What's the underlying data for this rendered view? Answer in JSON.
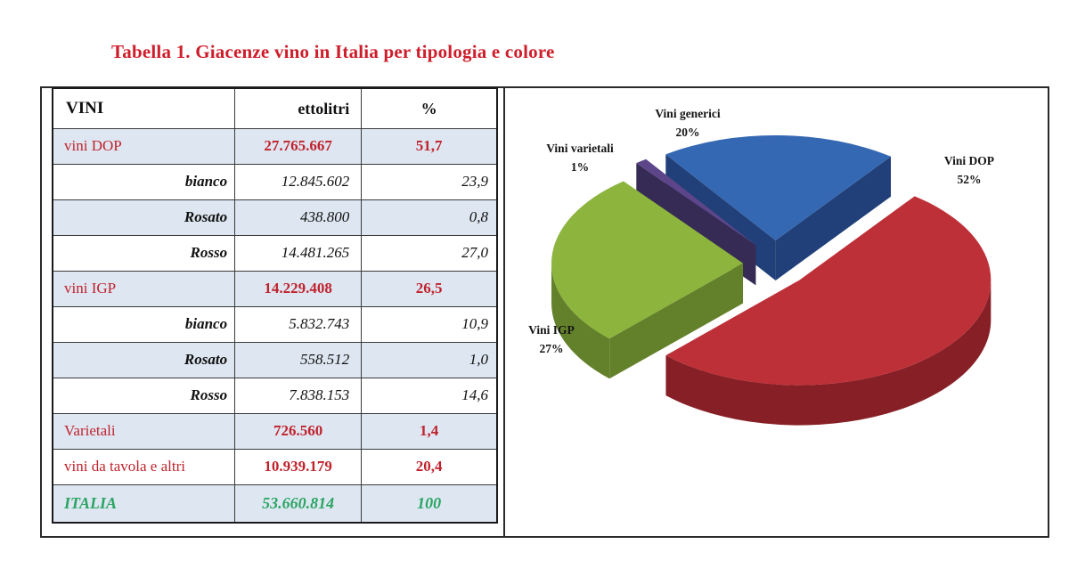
{
  "title": "Tabella 1. Giacenze vino in Italia per tipologia e colore",
  "table": {
    "headers": [
      "VINI",
      "ettolitri",
      "%"
    ],
    "rows": [
      {
        "label": "vini DOP",
        "ettolitri": "27.765.667",
        "pct": "51,7",
        "style": "cat"
      },
      {
        "label": "bianco",
        "ettolitri": "12.845.602",
        "pct": "23,9",
        "style": "sub"
      },
      {
        "label": "Rosato",
        "ettolitri": "438.800",
        "pct": "0,8",
        "style": "sub"
      },
      {
        "label": "Rosso",
        "ettolitri": "14.481.265",
        "pct": "27,0",
        "style": "sub"
      },
      {
        "label": "vini IGP",
        "ettolitri": "14.229.408",
        "pct": "26,5",
        "style": "cat"
      },
      {
        "label": "bianco",
        "ettolitri": "5.832.743",
        "pct": "10,9",
        "style": "sub"
      },
      {
        "label": "Rosato",
        "ettolitri": "558.512",
        "pct": "1,0",
        "style": "sub"
      },
      {
        "label": "Rosso",
        "ettolitri": "7.838.153",
        "pct": "14,6",
        "style": "sub"
      },
      {
        "label": "Varietali",
        "ettolitri": "726.560",
        "pct": "1,4",
        "style": "cat"
      },
      {
        "label": "vini da tavola e altri",
        "ettolitri": "10.939.179",
        "pct": "20,4",
        "style": "cat"
      },
      {
        "label": "ITALIA",
        "ettolitri": "53.660.814",
        "pct": "100",
        "style": "tot"
      }
    ]
  },
  "chart_data": {
    "type": "pie",
    "style": "3d-exploded",
    "title": "",
    "legend": "none",
    "labels_position": "outside",
    "start_angle_deg": -35,
    "slices": [
      {
        "name": "Vini generici",
        "value": 20,
        "pct_label": "20%",
        "color": "#3568b2",
        "wall": "#213f78"
      },
      {
        "name": "Vini DOP",
        "value": 52,
        "pct_label": "52%",
        "color": "#be3038",
        "wall": "#872026"
      },
      {
        "name": "Vini IGP",
        "value": 27,
        "pct_label": "27%",
        "color": "#8db43d",
        "wall": "#63812a"
      },
      {
        "name": "Vini varietali",
        "value": 1,
        "pct_label": "1%",
        "color": "#5c4689",
        "wall": "#362b55"
      }
    ]
  },
  "colors": {
    "title_red": "#ce1e2b",
    "table_red": "#c0232e",
    "total_green": "#29a463",
    "row_shade_blue": "#dee7f1",
    "border_dark": "#2a2a2a"
  }
}
